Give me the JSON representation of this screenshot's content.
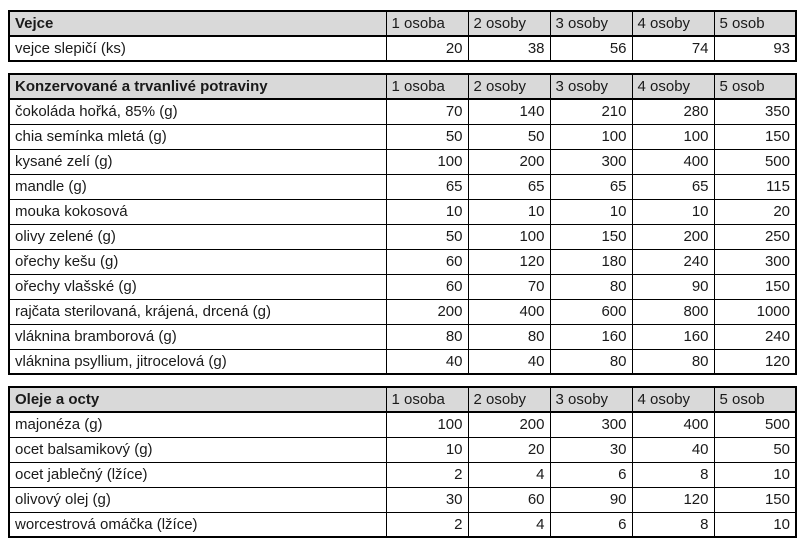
{
  "page": {
    "description": "Food quantities per number of persons",
    "background": "#ffffff"
  },
  "colors": {
    "header_bg": "#d9d9d9",
    "border": "#000000",
    "text": "#1a1a1a"
  },
  "columns": [
    "1 osoba",
    "2 osoby",
    "3 osoby",
    "4 osoby",
    "5 osob"
  ],
  "tables": [
    {
      "title": "Vejce",
      "rows": [
        {
          "label": "vejce slepičí (ks)",
          "values": [
            20,
            38,
            56,
            74,
            93
          ]
        }
      ]
    },
    {
      "title": "Konzervované a trvanlivé potraviny",
      "rows": [
        {
          "label": "čokoláda hořká, 85% (g)",
          "values": [
            70,
            140,
            210,
            280,
            350
          ]
        },
        {
          "label": "chia semínka mletá (g)",
          "values": [
            50,
            50,
            100,
            100,
            150
          ]
        },
        {
          "label": "kysané zelí (g)",
          "values": [
            100,
            200,
            300,
            400,
            500
          ]
        },
        {
          "label": "mandle (g)",
          "values": [
            65,
            65,
            65,
            65,
            115
          ]
        },
        {
          "label": "mouka kokosová",
          "values": [
            10,
            10,
            10,
            10,
            20
          ]
        },
        {
          "label": "olivy zelené (g)",
          "values": [
            50,
            100,
            150,
            200,
            250
          ]
        },
        {
          "label": "ořechy kešu (g)",
          "values": [
            60,
            120,
            180,
            240,
            300
          ]
        },
        {
          "label": "ořechy vlašské (g)",
          "values": [
            60,
            70,
            80,
            90,
            150
          ]
        },
        {
          "label": "rajčata sterilovaná, krájená, drcená (g)",
          "values": [
            200,
            400,
            600,
            800,
            1000
          ]
        },
        {
          "label": "vláknina bramborová (g)",
          "values": [
            80,
            80,
            160,
            160,
            240
          ]
        },
        {
          "label": "vláknina psyllium, jitrocelová (g)",
          "values": [
            40,
            40,
            80,
            80,
            120
          ]
        }
      ]
    },
    {
      "title": "Oleje a octy",
      "rows": [
        {
          "label": "majonéza (g)",
          "values": [
            100,
            200,
            300,
            400,
            500
          ]
        },
        {
          "label": "ocet balsamikový (g)",
          "values": [
            10,
            20,
            30,
            40,
            50
          ]
        },
        {
          "label": "ocet jablečný (lžíce)",
          "values": [
            2,
            4,
            6,
            8,
            10
          ]
        },
        {
          "label": "olivový olej (g)",
          "values": [
            30,
            60,
            90,
            120,
            150
          ]
        },
        {
          "label": "worcestrová omáčka (lžíce)",
          "values": [
            2,
            4,
            6,
            8,
            10
          ]
        }
      ]
    }
  ]
}
